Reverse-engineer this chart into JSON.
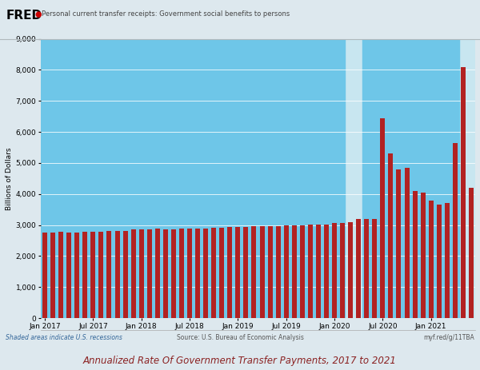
{
  "title": "Annualized Rate Of Government Transfer Payments, 2017 to 2021",
  "fred_label": "Personal current transfer receipts: Government social benefits to persons",
  "ylabel": "Billions of Dollars",
  "source_text": "Source: U.S. Bureau of Economic Analysis",
  "shaded_text": "Shaded areas indicate U.S. recessions",
  "url_text": "myf.red/g/11TBA",
  "ylim": [
    0,
    9000
  ],
  "yticks": [
    0,
    1000,
    2000,
    3000,
    4000,
    5000,
    6000,
    7000,
    8000,
    9000
  ],
  "bar_color": "#b22222",
  "recession_color": "#6ec6e8",
  "bg_color": "#c8e6f0",
  "header_bg": "#dde8ee",
  "outer_bg": "#dde8ee",
  "recession_ranges": [
    [
      -0.5,
      37.3
    ],
    [
      39.5,
      51.5
    ]
  ],
  "values": [
    2760,
    2760,
    2780,
    2760,
    2770,
    2775,
    2785,
    2780,
    2800,
    2810,
    2820,
    2860,
    2870,
    2850,
    2890,
    2870,
    2875,
    2880,
    2885,
    2890,
    2900,
    2910,
    2920,
    2930,
    2940,
    2945,
    2955,
    2960,
    2965,
    2970,
    2980,
    2985,
    2995,
    3005,
    3010,
    3025,
    3060,
    3065,
    3085,
    3200,
    3200,
    3210,
    6450,
    5300,
    4800,
    4850,
    4100,
    4050,
    3780,
    3650,
    3700,
    5650,
    8100,
    4200
  ],
  "xtick_positions": [
    0,
    6,
    12,
    18,
    24,
    30,
    36,
    42,
    48
  ],
  "xtick_labels": [
    "Jan 2017",
    "Jul 2017",
    "Jan 2018",
    "Jul 2018",
    "Jan 2019",
    "Jul 2019",
    "Jan 2020",
    "Jul 2020",
    "Jan 2021"
  ]
}
